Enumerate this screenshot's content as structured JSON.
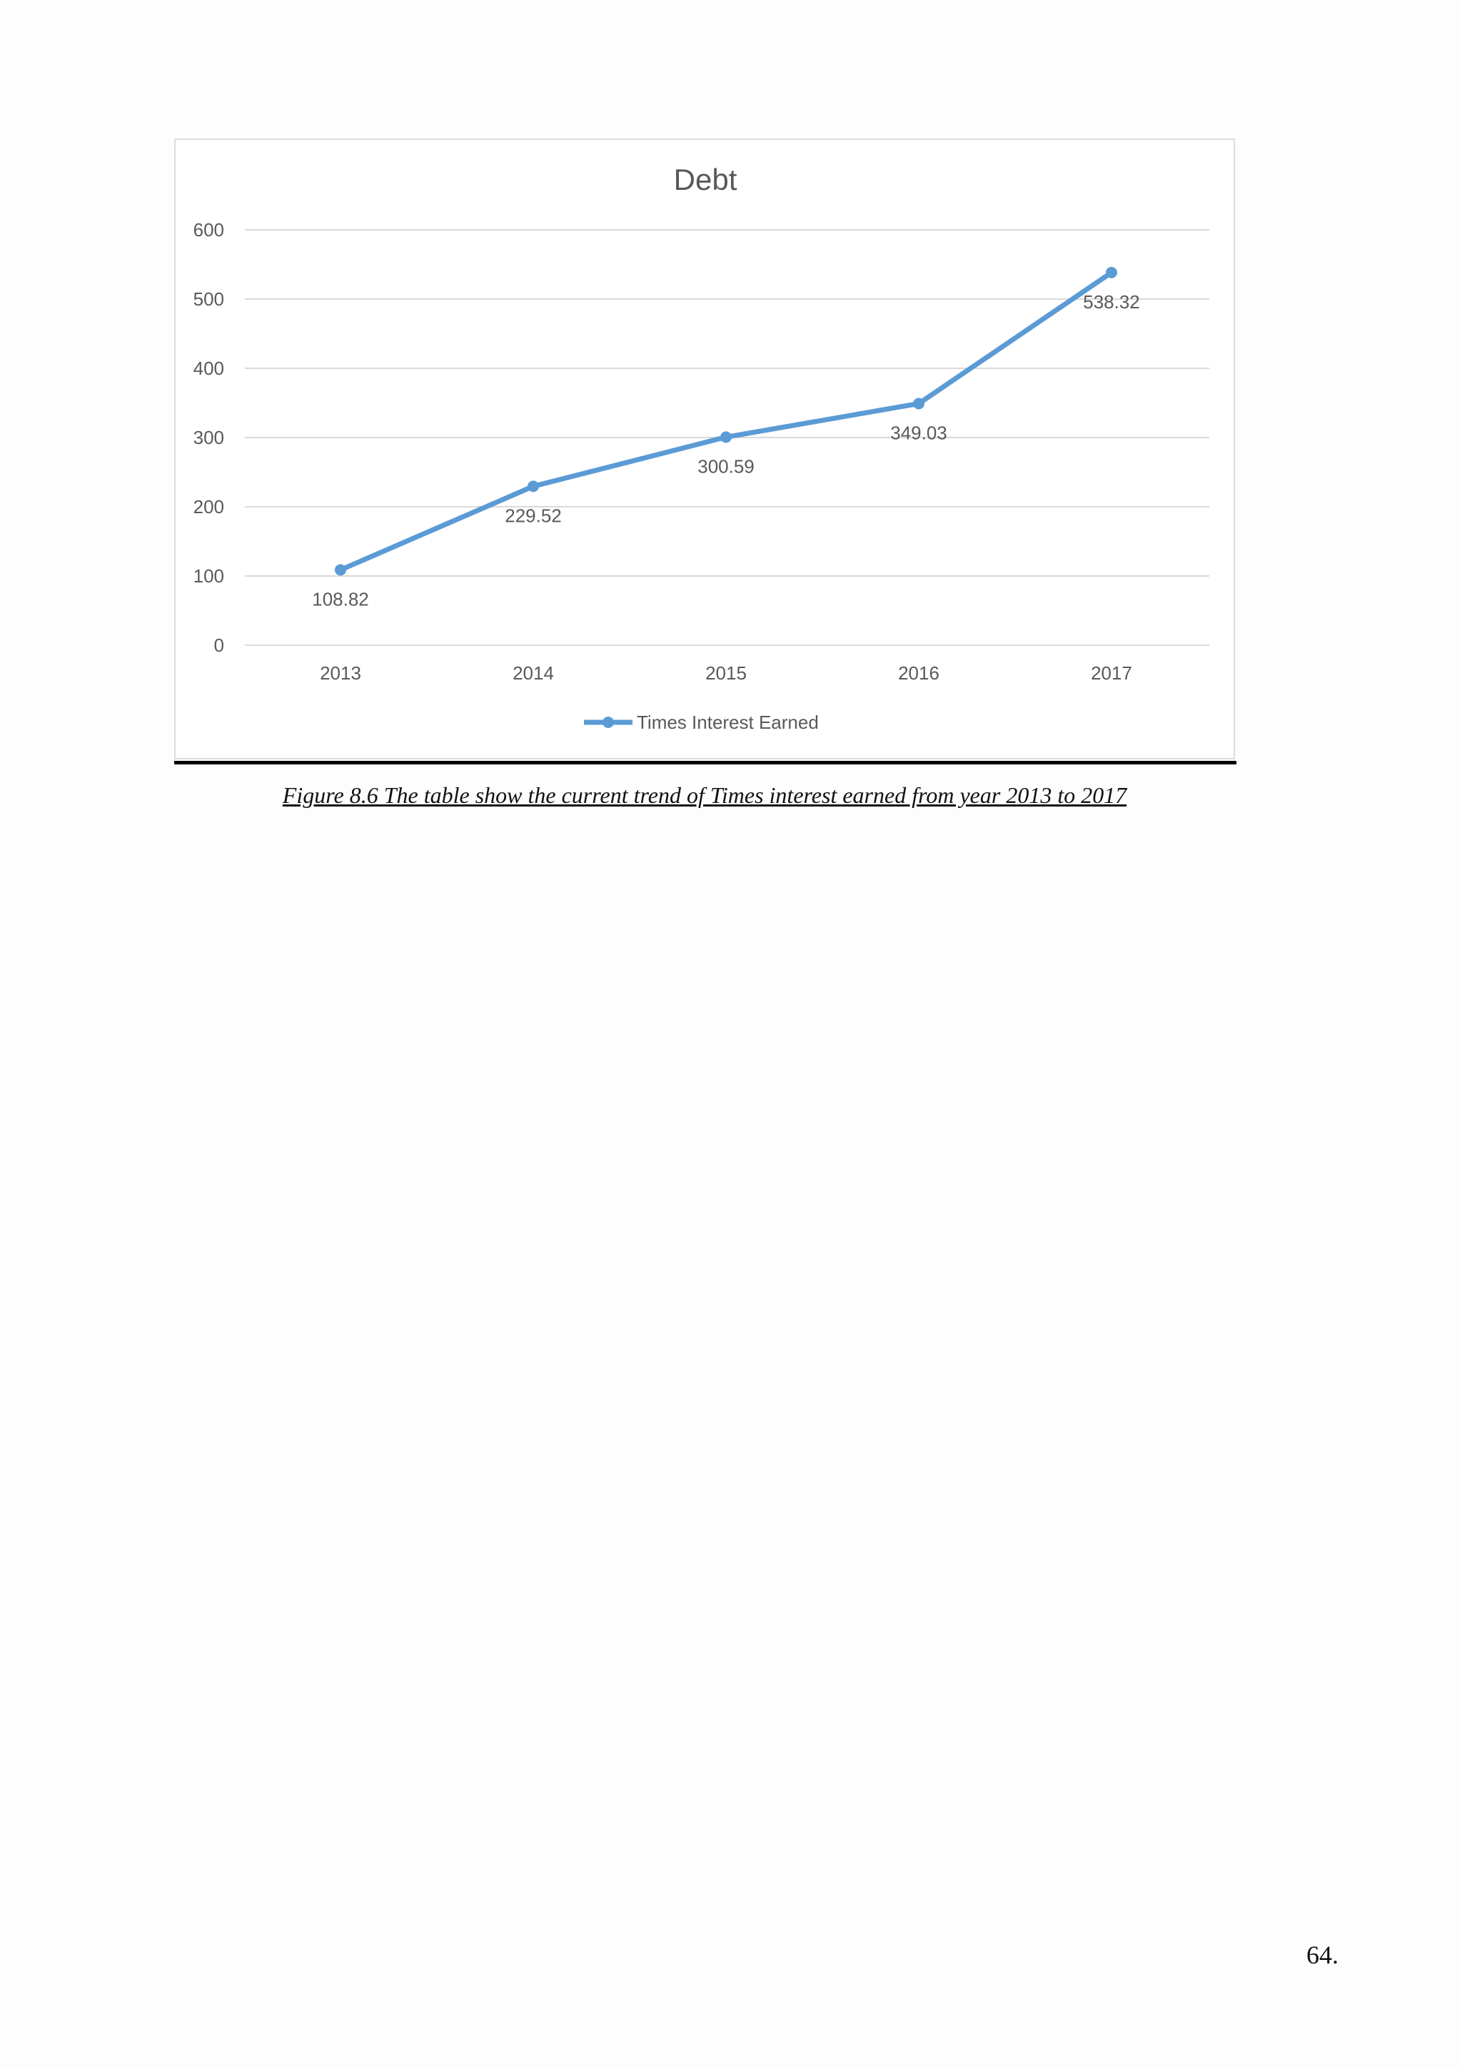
{
  "chart_data": {
    "type": "line",
    "title": "Debt",
    "categories": [
      "2013",
      "2014",
      "2015",
      "2016",
      "2017"
    ],
    "series": [
      {
        "name": "Times Interest Earned",
        "values": [
          108.82,
          229.52,
          300.59,
          349.03,
          538.32
        ]
      }
    ],
    "data_labels": [
      "108.82",
      "229.52",
      "300.59",
      "349.03",
      "538.32"
    ],
    "ylim": [
      0,
      600
    ],
    "yticks": [
      0,
      100,
      200,
      300,
      400,
      500,
      600
    ],
    "grid": true,
    "legend": "bottom-center",
    "colors": {
      "series": "#5b9bd5",
      "grid": "#d9d9d9",
      "text": "#595959",
      "title": "#595959"
    }
  },
  "caption": "Figure 8.6 The table show the current trend of Times interest earned from year 2013 to 2017",
  "page_number": "64."
}
